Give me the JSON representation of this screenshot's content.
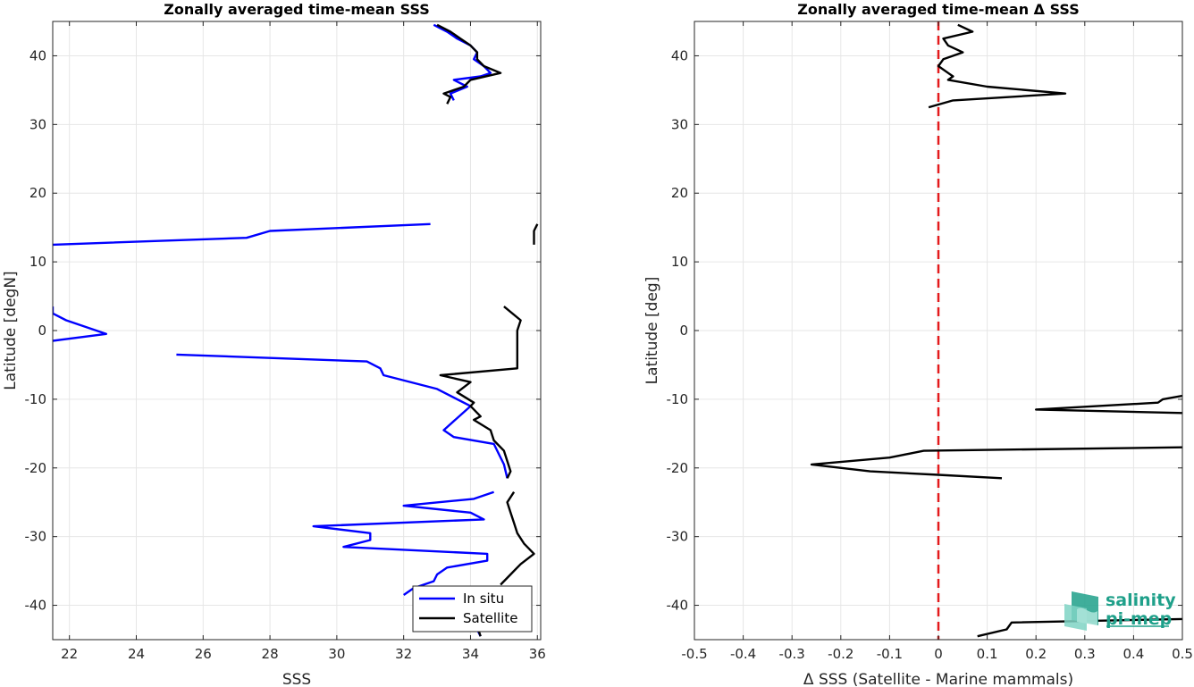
{
  "chart_data": [
    {
      "type": "line",
      "title": "Zonally averaged time-mean SSS",
      "xlabel": "SSS",
      "ylabel": "Latitude [degN]",
      "xlim": [
        21.5,
        36.1
      ],
      "ylim": [
        -45,
        45
      ],
      "xticks": [
        22,
        24,
        26,
        28,
        30,
        32,
        34,
        36
      ],
      "yticks": [
        -40,
        -30,
        -20,
        -10,
        0,
        10,
        20,
        30,
        40
      ],
      "xtick_labels": [
        "22",
        "24",
        "26",
        "28",
        "30",
        "32",
        "34",
        "36"
      ],
      "ytick_labels": [
        "-40",
        "-30",
        "-20",
        "-10",
        "0",
        "10",
        "20",
        "30",
        "40"
      ],
      "grid": true,
      "legend_position": "bottom-right",
      "series": [
        {
          "name": "In situ",
          "color": "#0000ff",
          "segments": [
            [
              [
                32.9,
                44.5
              ],
              [
                33.3,
                43.5
              ],
              [
                33.6,
                42.5
              ],
              [
                34.0,
                41.5
              ],
              [
                34.2,
                40.5
              ],
              [
                34.1,
                39.5
              ],
              [
                34.4,
                38.5
              ],
              [
                34.6,
                37.5
              ],
              [
                34.3,
                37.0
              ],
              [
                33.5,
                36.5
              ],
              [
                33.9,
                35.5
              ],
              [
                33.4,
                34.5
              ],
              [
                33.5,
                33.5
              ]
            ],
            [
              [
                21.5,
                12.5
              ],
              [
                27.3,
                13.5
              ],
              [
                28.0,
                14.5
              ],
              [
                32.8,
                15.5
              ]
            ],
            [
              [
                21.5,
                3.5
              ],
              [
                21.5,
                2.5
              ],
              [
                21.9,
                1.5
              ],
              [
                23.1,
                -0.5
              ],
              [
                21.5,
                -1.5
              ]
            ],
            [
              [
                25.2,
                -3.5
              ],
              [
                30.9,
                -4.5
              ],
              [
                31.3,
                -5.5
              ],
              [
                31.4,
                -6.5
              ],
              [
                33.0,
                -8.5
              ],
              [
                34.0,
                -11.0
              ],
              [
                33.2,
                -14.5
              ],
              [
                33.5,
                -15.5
              ],
              [
                34.7,
                -16.5
              ],
              [
                35.0,
                -19.5
              ],
              [
                35.1,
                -21.5
              ]
            ],
            [
              [
                34.7,
                -23.5
              ],
              [
                34.1,
                -24.5
              ],
              [
                32.0,
                -25.5
              ],
              [
                34.0,
                -26.5
              ],
              [
                34.4,
                -27.5
              ],
              [
                29.3,
                -28.5
              ],
              [
                31.0,
                -29.5
              ],
              [
                31.0,
                -30.5
              ],
              [
                30.2,
                -31.5
              ],
              [
                34.5,
                -32.5
              ],
              [
                34.5,
                -33.5
              ],
              [
                33.3,
                -34.5
              ],
              [
                33.0,
                -35.5
              ],
              [
                32.9,
                -36.5
              ],
              [
                32.3,
                -37.5
              ],
              [
                32.0,
                -38.5
              ]
            ],
            [
              [
                34.2,
                -43.5
              ],
              [
                34.3,
                -44.5
              ]
            ]
          ]
        },
        {
          "name": "Satellite",
          "color": "#000000",
          "segments": [
            [
              [
                33.0,
                44.5
              ],
              [
                33.4,
                43.5
              ],
              [
                33.7,
                42.5
              ],
              [
                34.0,
                41.5
              ],
              [
                34.2,
                40.5
              ],
              [
                34.2,
                39.5
              ],
              [
                34.4,
                38.5
              ],
              [
                34.9,
                37.5
              ],
              [
                34.0,
                36.5
              ],
              [
                33.8,
                35.5
              ],
              [
                33.2,
                34.5
              ],
              [
                33.4,
                34.0
              ],
              [
                33.3,
                33.0
              ]
            ],
            [
              [
                36.0,
                15.5
              ],
              [
                35.9,
                14.5
              ],
              [
                35.9,
                13.5
              ],
              [
                35.9,
                12.5
              ]
            ],
            [
              [
                35.0,
                3.5
              ],
              [
                35.5,
                1.5
              ],
              [
                35.4,
                0.0
              ],
              [
                35.4,
                -1.0
              ],
              [
                35.4,
                -5.5
              ],
              [
                33.1,
                -6.5
              ],
              [
                34.0,
                -7.5
              ],
              [
                33.6,
                -9.0
              ],
              [
                34.1,
                -10.5
              ],
              [
                34.0,
                -11.0
              ],
              [
                34.3,
                -12.5
              ],
              [
                34.1,
                -13.0
              ],
              [
                34.6,
                -14.5
              ],
              [
                34.7,
                -16.0
              ],
              [
                35.0,
                -17.5
              ],
              [
                35.1,
                -19.0
              ],
              [
                35.2,
                -20.5
              ],
              [
                35.1,
                -21.5
              ]
            ],
            [
              [
                35.3,
                -23.5
              ],
              [
                35.1,
                -25.0
              ],
              [
                35.2,
                -26.5
              ],
              [
                35.3,
                -28.0
              ],
              [
                35.4,
                -29.5
              ],
              [
                35.6,
                -31.0
              ],
              [
                35.9,
                -32.5
              ],
              [
                35.5,
                -34.0
              ],
              [
                35.2,
                -35.5
              ],
              [
                34.9,
                -37.0
              ]
            ],
            [
              [
                34.2,
                -43.0
              ],
              [
                34.3,
                -44.5
              ]
            ]
          ]
        }
      ]
    },
    {
      "type": "line",
      "title": "Zonally averaged time-mean Δ SSS",
      "xlabel": "Δ SSS (Satellite - Marine mammals)",
      "ylabel": "Latitude [deg]",
      "xlim": [
        -0.5,
        0.5
      ],
      "ylim": [
        -45,
        45
      ],
      "xticks": [
        -0.5,
        -0.4,
        -0.3,
        -0.2,
        -0.1,
        0,
        0.1,
        0.2,
        0.3,
        0.4,
        0.5
      ],
      "yticks": [
        -40,
        -30,
        -20,
        -10,
        0,
        10,
        20,
        30,
        40
      ],
      "xtick_labels": [
        "-0.5",
        "-0.4",
        "-0.3",
        "-0.2",
        "-0.1",
        "0",
        "0.1",
        "0.2",
        "0.3",
        "0.4",
        "0.5"
      ],
      "ytick_labels": [
        "-40",
        "-30",
        "-20",
        "-10",
        "0",
        "10",
        "20",
        "30",
        "40"
      ],
      "grid": true,
      "reference_line": {
        "x": 0,
        "color": "#e31a1c",
        "style": "dashed"
      },
      "series": [
        {
          "color": "#000000",
          "segments": [
            [
              [
                0.04,
                44.5
              ],
              [
                0.07,
                43.5
              ],
              [
                0.01,
                42.5
              ],
              [
                0.02,
                41.5
              ],
              [
                0.05,
                40.5
              ],
              [
                0.01,
                39.5
              ],
              [
                0.0,
                38.5
              ],
              [
                0.02,
                37.5
              ],
              [
                0.03,
                37.0
              ],
              [
                0.02,
                36.5
              ],
              [
                0.1,
                35.5
              ],
              [
                0.26,
                34.5
              ],
              [
                0.03,
                33.5
              ],
              [
                -0.02,
                32.5
              ]
            ],
            [
              [
                0.5,
                -9.5
              ],
              [
                0.46,
                -10.0
              ],
              [
                0.45,
                -10.5
              ],
              [
                0.2,
                -11.5
              ],
              [
                0.5,
                -12.0
              ]
            ],
            [
              [
                0.5,
                -17.0
              ],
              [
                -0.03,
                -17.5
              ],
              [
                -0.1,
                -18.5
              ],
              [
                -0.26,
                -19.5
              ],
              [
                -0.14,
                -20.5
              ],
              [
                0.0,
                -21.0
              ],
              [
                0.13,
                -21.5
              ]
            ],
            [
              [
                0.5,
                -42.0
              ],
              [
                0.15,
                -42.5
              ],
              [
                0.14,
                -43.5
              ],
              [
                0.08,
                -44.5
              ]
            ]
          ]
        }
      ]
    }
  ],
  "logo": {
    "line1": "salinity",
    "line2": "pi-mep",
    "color": "#1fa08a"
  }
}
